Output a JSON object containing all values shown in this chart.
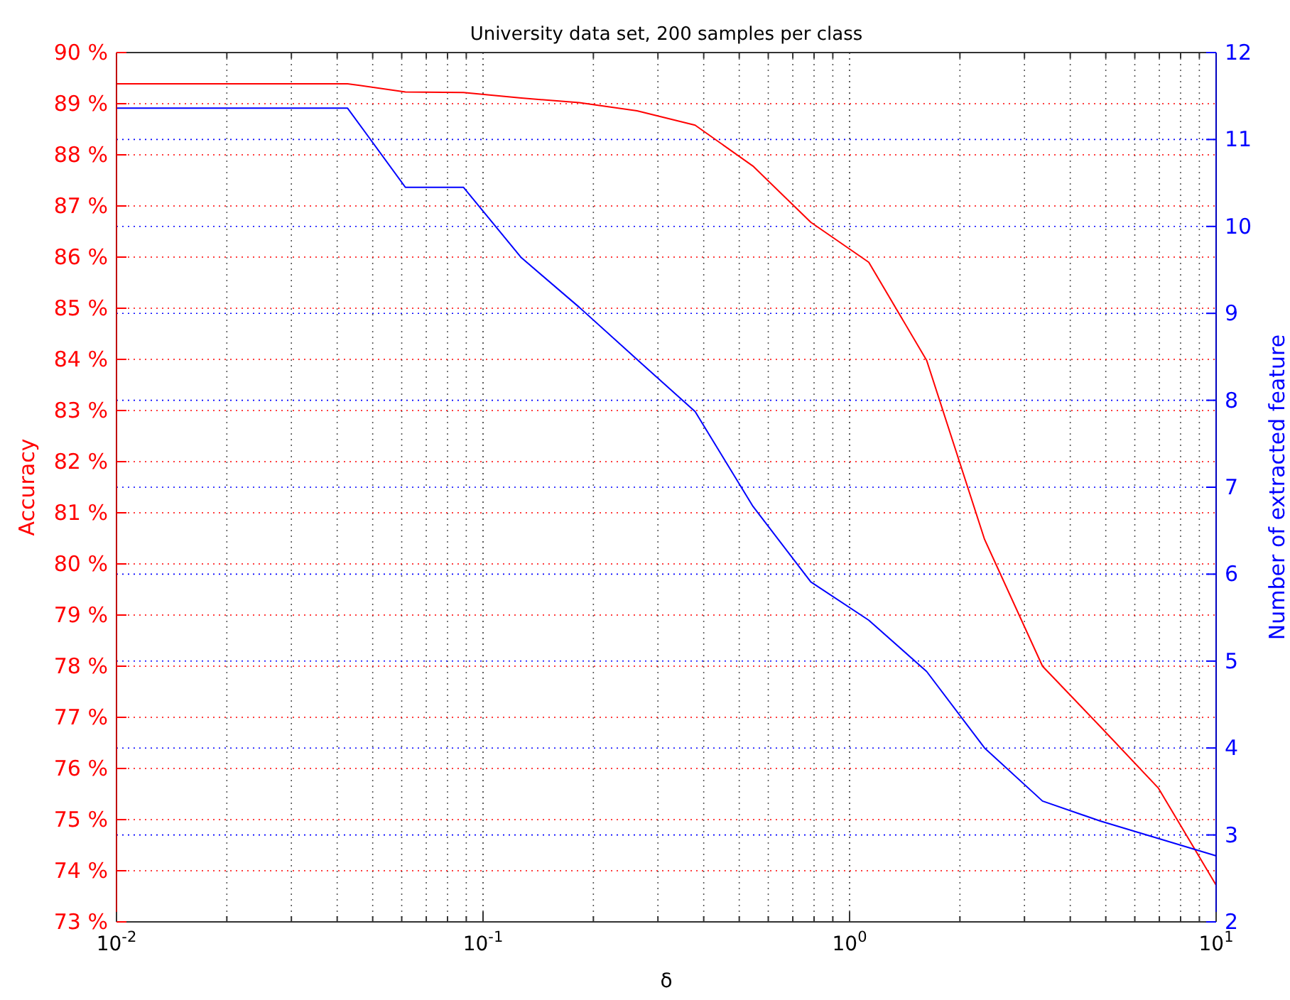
{
  "chart_data": {
    "type": "line",
    "title": "University data set, 200 samples per class",
    "xlabel": "δ",
    "ylabel": "Accuracy",
    "y2label": "Number of extracted feature",
    "x": [
      0.01,
      0.0427,
      0.0614,
      0.0884,
      0.1272,
      0.183,
      0.263,
      0.379,
      0.545,
      0.784,
      1.128,
      1.623,
      2.335,
      3.36,
      4.83,
      6.95,
      10
    ],
    "series": [
      {
        "color": "#ff0000",
        "values": [
          89.39,
          89.39,
          89.23,
          89.22,
          89.11,
          89.02,
          88.86,
          88.58,
          87.78,
          86.68,
          85.9,
          83.98,
          80.48,
          78.0,
          76.82,
          75.62,
          73.72
        ]
      },
      {
        "color": "#0000ff",
        "axis": "y2",
        "values": [
          11.36,
          11.36,
          10.45,
          10.45,
          9.64,
          9.07,
          8.47,
          7.87,
          6.78,
          5.91,
          5.47,
          4.88,
          4.0,
          3.39,
          3.16,
          2.96,
          2.76
        ]
      }
    ],
    "log": "x",
    "xlim": [
      0.01,
      10
    ],
    "xticks": [
      {
        "value": 0.01,
        "label": "10$^{-2}$"
      },
      {
        "value": 0.1,
        "label": "10$^{-1}$"
      },
      {
        "value": 1,
        "label": "10$^{0}$"
      },
      {
        "value": 10,
        "label": "10$^{1}$"
      }
    ],
    "ylim": [
      73,
      90
    ],
    "yticks": [
      {
        "value": 73,
        "label": "73 %"
      },
      {
        "value": 74,
        "label": "74 %"
      },
      {
        "value": 75,
        "label": "75 %"
      },
      {
        "value": 76,
        "label": "76 %"
      },
      {
        "value": 77,
        "label": "77 %"
      },
      {
        "value": 78,
        "label": "78 %"
      },
      {
        "value": 79,
        "label": "79 %"
      },
      {
        "value": 80,
        "label": "80 %"
      },
      {
        "value": 81,
        "label": "81 %"
      },
      {
        "value": 82,
        "label": "82 %"
      },
      {
        "value": 83,
        "label": "83 %"
      },
      {
        "value": 84,
        "label": "84 %"
      },
      {
        "value": 85,
        "label": "85 %"
      },
      {
        "value": 86,
        "label": "86 %"
      },
      {
        "value": 87,
        "label": "87 %"
      },
      {
        "value": 88,
        "label": "88 %"
      },
      {
        "value": 89,
        "label": "89 %"
      },
      {
        "value": 90,
        "label": "90 %"
      }
    ],
    "y2lim": [
      2,
      12
    ],
    "y2ticks": [
      2,
      3,
      4,
      5,
      6,
      7,
      8,
      9,
      10,
      11,
      12
    ],
    "grid": true,
    "marker": "none",
    "line_style": "solid"
  }
}
